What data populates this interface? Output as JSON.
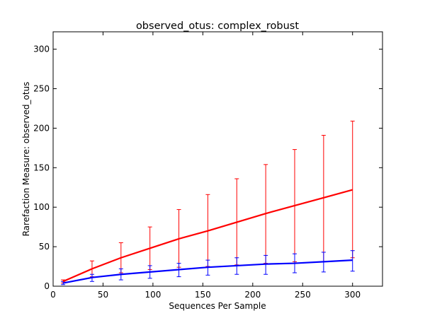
{
  "chart_data": {
    "type": "line",
    "title": "observed_otus: complex_robust",
    "xlabel": "Sequences Per Sample",
    "ylabel": "Rarefaction Measure: observed_otus",
    "xlim": [
      0,
      330
    ],
    "ylim": [
      0,
      322
    ],
    "xticks": [
      0,
      50,
      100,
      150,
      200,
      250,
      300
    ],
    "yticks": [
      0,
      50,
      100,
      150,
      200,
      250,
      300
    ],
    "grid": false,
    "x": [
      10,
      39,
      68,
      97,
      126,
      155,
      184,
      213,
      242,
      271,
      300
    ],
    "series": [
      {
        "color": "#ff0000",
        "values": [
          6,
          22,
          36,
          48,
          60,
          70,
          81,
          92,
          102,
          112,
          122
        ],
        "err_low": [
          4,
          12,
          17,
          21,
          24,
          25,
          27,
          29,
          31,
          31,
          36
        ],
        "err_high": [
          8,
          32,
          55,
          75,
          97,
          116,
          136,
          154,
          173,
          191,
          209
        ]
      },
      {
        "color": "#0000ff",
        "values": [
          4,
          11,
          15,
          18,
          21,
          24,
          26,
          28,
          29,
          31,
          33
        ],
        "err_low": [
          2,
          6,
          8,
          10,
          12,
          14,
          15,
          15,
          17,
          18,
          19
        ],
        "err_high": [
          6,
          15,
          22,
          26,
          29,
          33,
          36,
          39,
          41,
          43,
          45
        ]
      }
    ]
  }
}
